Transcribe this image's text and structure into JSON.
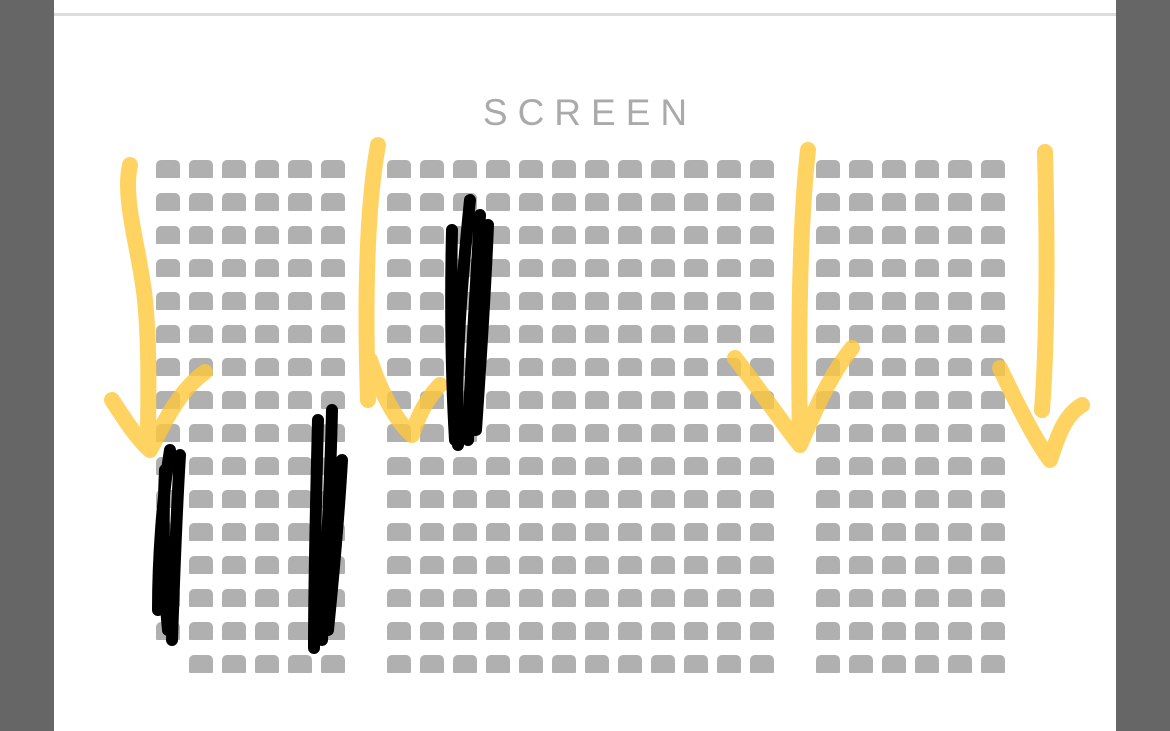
{
  "screen_label": "SCREEN",
  "seat_map": {
    "rows": 16,
    "blocks": [
      {
        "name": "left",
        "columns": 6,
        "missing": [
          {
            "row": 16,
            "col": 1
          }
        ]
      },
      {
        "name": "center",
        "columns": 12,
        "missing": []
      },
      {
        "name": "right",
        "columns": 6,
        "missing": []
      }
    ],
    "seat_color": "#b0b0b0"
  },
  "annotations": {
    "arrow_color": "#ffc83a",
    "scribble_color": "#000000"
  }
}
